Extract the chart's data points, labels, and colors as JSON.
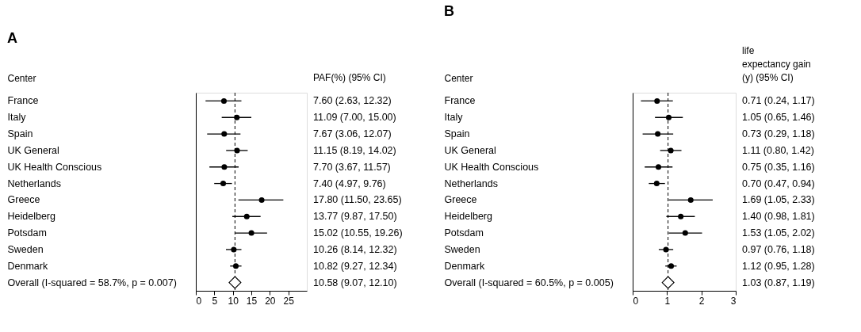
{
  "chart_data": [
    {
      "type": "scatter",
      "title": "A",
      "orientation": "horizontal",
      "ylabel": "Center",
      "annotations": [
        "PAF(%) (95% CI)"
      ],
      "categories": [
        "France",
        "Italy",
        "Spain",
        "UK General",
        "UK Health Conscious",
        "Netherlands",
        "Greece",
        "Heidelberg",
        "Potsdam",
        "Sweden",
        "Denmark",
        "Overall  (I-squared = 58.7%, p = 0.007)"
      ],
      "series": [
        {
          "color": "#000000",
          "marker": "circle",
          "values": [
            7.6,
            11.09,
            7.67,
            11.15,
            7.7,
            7.4,
            17.8,
            13.77,
            15.02,
            10.26,
            10.82,
            null
          ],
          "errors": [
            [
              2.63,
              12.32
            ],
            [
              7.0,
              15.0
            ],
            [
              3.06,
              12.07
            ],
            [
              8.19,
              14.02
            ],
            [
              3.67,
              11.57
            ],
            [
              4.97,
              9.76
            ],
            [
              11.5,
              23.65
            ],
            [
              9.87,
              17.5
            ],
            [
              10.55,
              19.26
            ],
            [
              8.14,
              12.32
            ],
            [
              9.27,
              12.34
            ],
            null
          ]
        },
        {
          "color": "#000000",
          "marker": "diamond",
          "values": [
            null,
            null,
            null,
            null,
            null,
            null,
            null,
            null,
            null,
            null,
            null,
            10.58
          ],
          "errors": [
            null,
            null,
            null,
            null,
            null,
            null,
            null,
            null,
            null,
            null,
            null,
            [
              9.07,
              12.1
            ]
          ]
        }
      ],
      "value_labels": [
        "7.60 (2.63, 12.32)",
        "11.09 (7.00, 15.00)",
        "7.67 (3.06, 12.07)",
        "11.15 (8.19, 14.02)",
        "7.70 (3.67, 11.57)",
        "7.40 (4.97, 9.76)",
        "17.80 (11.50, 23.65)",
        "13.77 (9.87, 17.50)",
        "15.02 (10.55, 19.26)",
        "10.26 (8.14, 12.32)",
        "10.82 (9.27, 12.34)",
        "10.58 (9.07, 12.10)"
      ],
      "xlim": [
        0,
        30
      ],
      "xticks": [
        0,
        5,
        10,
        15,
        20,
        25
      ],
      "ref_lines": [
        {
          "axis": "x",
          "value": 10.58,
          "line_style": "dashed"
        }
      ]
    },
    {
      "type": "scatter",
      "title": "B",
      "orientation": "horizontal",
      "ylabel": "Center",
      "annotations": [
        "life\nexpectancy gain\n(y) (95% CI)"
      ],
      "categories": [
        "France",
        "Italy",
        "Spain",
        "UK General",
        "UK Health Conscious",
        "Netherlands",
        "Greece",
        "Heidelberg",
        "Potsdam",
        "Sweden",
        "Denmark",
        "Overall  (I-squared = 60.5%, p = 0.005)"
      ],
      "series": [
        {
          "color": "#000000",
          "marker": "circle",
          "values": [
            0.71,
            1.05,
            0.73,
            1.11,
            0.75,
            0.7,
            1.69,
            1.4,
            1.53,
            0.97,
            1.12,
            null
          ],
          "errors": [
            [
              0.24,
              1.17
            ],
            [
              0.65,
              1.46
            ],
            [
              0.29,
              1.18
            ],
            [
              0.8,
              1.42
            ],
            [
              0.35,
              1.16
            ],
            [
              0.47,
              0.94
            ],
            [
              1.05,
              2.33
            ],
            [
              0.98,
              1.81
            ],
            [
              1.05,
              2.02
            ],
            [
              0.76,
              1.18
            ],
            [
              0.95,
              1.28
            ],
            null
          ]
        },
        {
          "color": "#000000",
          "marker": "diamond",
          "values": [
            null,
            null,
            null,
            null,
            null,
            null,
            null,
            null,
            null,
            null,
            null,
            1.03
          ],
          "errors": [
            null,
            null,
            null,
            null,
            null,
            null,
            null,
            null,
            null,
            null,
            null,
            [
              0.87,
              1.19
            ]
          ]
        }
      ],
      "value_labels": [
        "0.71 (0.24, 1.17)",
        "1.05 (0.65, 1.46)",
        "0.73 (0.29, 1.18)",
        "1.11 (0.80, 1.42)",
        "0.75 (0.35, 1.16)",
        "0.70 (0.47, 0.94)",
        "1.69 (1.05, 2.33)",
        "1.40 (0.98, 1.81)",
        "1.53 (1.05, 2.02)",
        "0.97 (0.76, 1.18)",
        "1.12 (0.95, 1.28)",
        "1.03 (0.87, 1.19)"
      ],
      "xlim": [
        0,
        3
      ],
      "xticks": [
        0,
        1,
        2,
        3
      ],
      "ref_lines": [
        {
          "axis": "x",
          "value": 1.03,
          "line_style": "dashed"
        }
      ]
    }
  ]
}
